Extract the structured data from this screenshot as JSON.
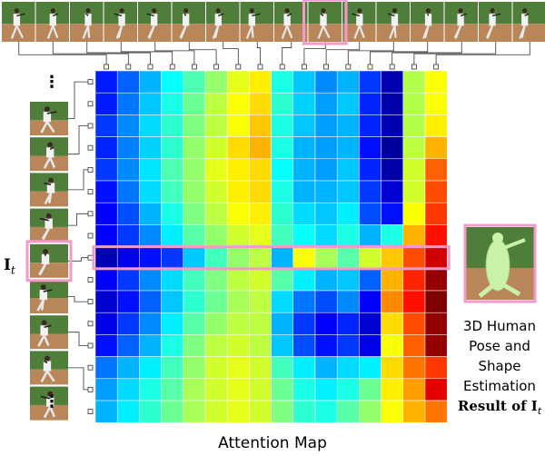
{
  "figure": {
    "x_axis_title": "Attention Map",
    "y_side_label": {
      "symbol": "I",
      "subscript": "t"
    },
    "ellipsis": "⋮",
    "result_caption_lines": [
      "3D Human",
      "Pose and",
      "Shape",
      "Estimation",
      "Result of I"
    ],
    "result_caption_subscript": "t"
  },
  "colors": {
    "highlight_pink": "#f29bc9",
    "connector": "#333333",
    "colormap": "jet"
  },
  "chart_data": {
    "type": "heatmap",
    "title": "Attention Map",
    "rows": 16,
    "cols": 16,
    "highlight_row": 8,
    "highlight_col": 9,
    "colormap": "jet",
    "value_range": [
      0,
      1
    ],
    "values": [
      [
        0.15,
        0.22,
        0.3,
        0.38,
        0.45,
        0.52,
        0.6,
        0.64,
        0.4,
        0.32,
        0.26,
        0.3,
        0.18,
        0.05,
        0.55,
        0.62
      ],
      [
        0.15,
        0.24,
        0.32,
        0.4,
        0.48,
        0.56,
        0.62,
        0.66,
        0.42,
        0.33,
        0.28,
        0.32,
        0.16,
        0.04,
        0.55,
        0.62
      ],
      [
        0.18,
        0.26,
        0.34,
        0.42,
        0.5,
        0.56,
        0.62,
        0.68,
        0.4,
        0.32,
        0.28,
        0.3,
        0.16,
        0.05,
        0.55,
        0.64
      ],
      [
        0.16,
        0.25,
        0.33,
        0.42,
        0.52,
        0.58,
        0.66,
        0.7,
        0.4,
        0.3,
        0.28,
        0.3,
        0.14,
        0.03,
        0.56,
        0.7
      ],
      [
        0.18,
        0.26,
        0.35,
        0.45,
        0.52,
        0.6,
        0.64,
        0.66,
        0.38,
        0.3,
        0.28,
        0.32,
        0.16,
        0.04,
        0.58,
        0.78
      ],
      [
        0.14,
        0.24,
        0.34,
        0.44,
        0.52,
        0.58,
        0.64,
        0.66,
        0.4,
        0.3,
        0.3,
        0.32,
        0.18,
        0.08,
        0.58,
        0.8
      ],
      [
        0.12,
        0.2,
        0.3,
        0.4,
        0.5,
        0.56,
        0.62,
        0.64,
        0.42,
        0.34,
        0.32,
        0.36,
        0.2,
        0.14,
        0.62,
        0.82
      ],
      [
        0.12,
        0.18,
        0.26,
        0.36,
        0.46,
        0.52,
        0.58,
        0.6,
        0.44,
        0.38,
        0.34,
        0.4,
        0.3,
        0.4,
        0.7,
        0.86
      ],
      [
        0.05,
        0.1,
        0.14,
        0.18,
        0.32,
        0.44,
        0.52,
        0.56,
        0.3,
        0.62,
        0.54,
        0.46,
        0.58,
        0.68,
        0.8,
        0.92
      ],
      [
        0.12,
        0.18,
        0.26,
        0.34,
        0.44,
        0.5,
        0.56,
        0.58,
        0.46,
        0.36,
        0.3,
        0.32,
        0.22,
        0.7,
        0.84,
        0.98
      ],
      [
        0.08,
        0.14,
        0.22,
        0.32,
        0.42,
        0.48,
        0.54,
        0.56,
        0.34,
        0.24,
        0.2,
        0.26,
        0.12,
        0.74,
        0.86,
        1.0
      ],
      [
        0.1,
        0.18,
        0.26,
        0.36,
        0.46,
        0.52,
        0.56,
        0.56,
        0.3,
        0.18,
        0.12,
        0.16,
        0.08,
        0.66,
        0.8,
        0.98
      ],
      [
        0.14,
        0.22,
        0.3,
        0.4,
        0.5,
        0.56,
        0.58,
        0.56,
        0.32,
        0.2,
        0.14,
        0.18,
        0.1,
        0.62,
        0.78,
        0.98
      ],
      [
        0.24,
        0.3,
        0.36,
        0.44,
        0.52,
        0.58,
        0.6,
        0.58,
        0.44,
        0.36,
        0.3,
        0.34,
        0.36,
        0.66,
        0.76,
        0.82
      ],
      [
        0.28,
        0.34,
        0.4,
        0.46,
        0.54,
        0.58,
        0.6,
        0.58,
        0.48,
        0.4,
        0.36,
        0.4,
        0.48,
        0.64,
        0.72,
        0.9
      ],
      [
        0.3,
        0.36,
        0.42,
        0.48,
        0.54,
        0.58,
        0.6,
        0.58,
        0.5,
        0.42,
        0.4,
        0.46,
        0.52,
        0.62,
        0.7,
        0.76
      ]
    ]
  }
}
